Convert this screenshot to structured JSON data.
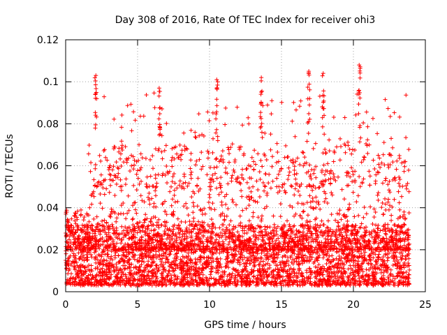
{
  "chart_data": {
    "type": "scatter",
    "title": "Day 308 of 2016, Rate Of TEC Index for receiver ohi3",
    "xlabel": "GPS time / hours",
    "ylabel": "ROTI / TECUs",
    "xlim": [
      0,
      25
    ],
    "ylim": [
      0,
      0.12
    ],
    "xticks": [
      "0",
      "5",
      "10",
      "15",
      "20",
      "25"
    ],
    "yticks": [
      "0",
      "0.02",
      "0.04",
      "0.06",
      "0.08",
      "0.1",
      "0.12"
    ],
    "grid": true,
    "marker": "plus",
    "color": "#ff0000",
    "x_extent": [
      0,
      23.9
    ],
    "typical_range": [
      0.005,
      0.03
    ],
    "notable_peaks": [
      {
        "x": 2.1,
        "y": 0.103
      },
      {
        "x": 6.5,
        "y": 0.097
      },
      {
        "x": 10.5,
        "y": 0.101
      },
      {
        "x": 13.6,
        "y": 0.102
      },
      {
        "x": 16.9,
        "y": 0.105
      },
      {
        "x": 17.9,
        "y": 0.104
      },
      {
        "x": 20.4,
        "y": 0.108
      }
    ]
  }
}
